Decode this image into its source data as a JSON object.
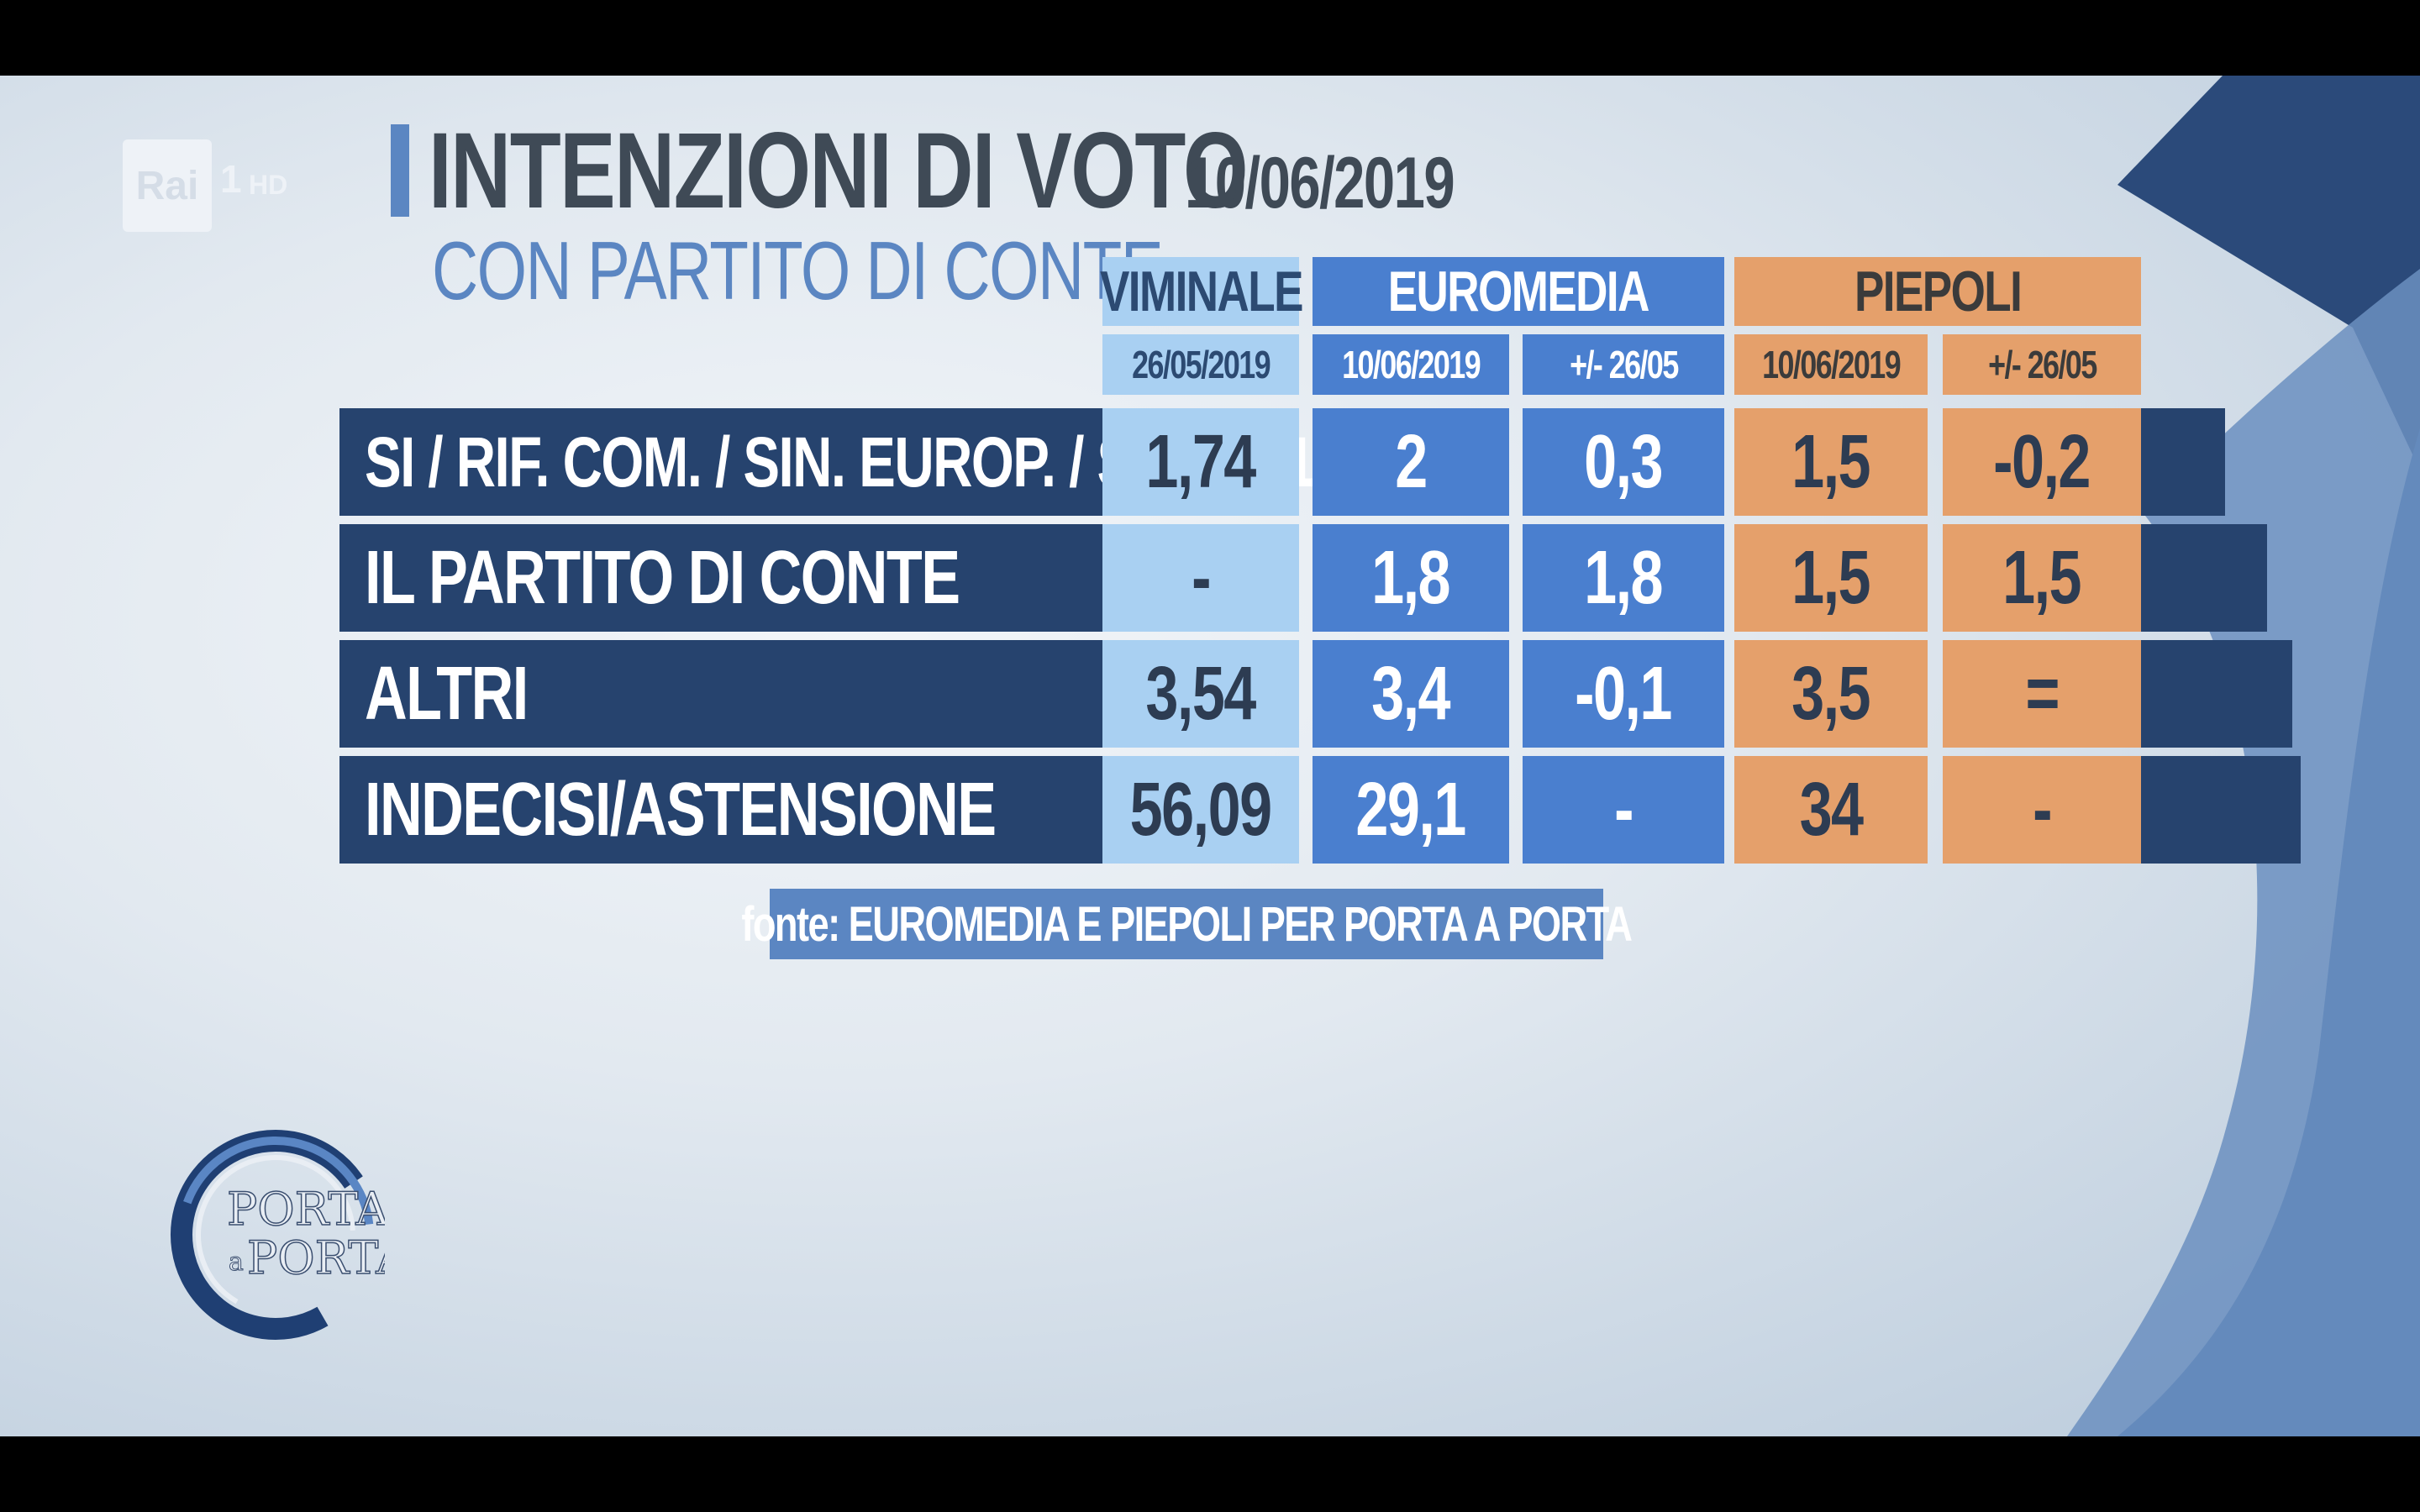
{
  "channel": {
    "logo_text": "Rai",
    "channel_num": "1",
    "hd": "HD"
  },
  "title": "INTENZIONI DI VOTO",
  "title_date": "10/06/2019",
  "subtitle": "CON PARTITO DI CONTE",
  "headers": {
    "viminale": "VIMINALE",
    "euromedia": "EUROMEDIA",
    "piepoli": "PIEPOLI",
    "viminale_date": "26/05/2019",
    "euromedia_date": "10/06/2019",
    "euromedia_diff": "+/- 26/05",
    "piepoli_date": "10/06/2019",
    "piepoli_diff": "+/- 26/05"
  },
  "rows": [
    {
      "label": "SI / RIF. COM. / SIN. EUROP. / SIN. ITAL.",
      "viminale": "1,74",
      "eur": "2",
      "eur_diff": "0,3",
      "pie": "1,5",
      "pie_diff": "-0,2"
    },
    {
      "label": "IL PARTITO DI CONTE",
      "viminale": "-",
      "eur": "1,8",
      "eur_diff": "1,8",
      "pie": "1,5",
      "pie_diff": "1,5"
    },
    {
      "label": "ALTRI",
      "viminale": "3,54",
      "eur": "3,4",
      "eur_diff": "-0,1",
      "pie": "3,5",
      "pie_diff": "="
    },
    {
      "label": "INDECISI/ASTENSIONE",
      "viminale": "56,09",
      "eur": "29,1",
      "eur_diff": "-",
      "pie": "34",
      "pie_diff": "-"
    }
  ],
  "source": "fonte: EUROMEDIA E PIEPOLI PER PORTA A PORTA",
  "show_logo": {
    "line1": "PORTA",
    "line2": "a",
    "line3": "PORTA"
  },
  "chart_data": {
    "type": "table",
    "title": "INTENZIONI DI VOTO",
    "subtitle": "CON PARTITO DI CONTE",
    "columns": [
      "VIMINALE 26/05/2019",
      "EUROMEDIA 10/06/2019",
      "EUROMEDIA +/- 26/05",
      "PIEPOLI 10/06/2019",
      "PIEPOLI +/- 26/05"
    ],
    "rows": [
      {
        "label": "SI / RIF. COM. / SIN. EUROP. / SIN. ITAL.",
        "values": [
          "1,74",
          "2",
          "0,3",
          "1,5",
          "-0,2"
        ]
      },
      {
        "label": "IL PARTITO DI CONTE",
        "values": [
          "-",
          "1,8",
          "1,8",
          "1,5",
          "1,5"
        ]
      },
      {
        "label": "ALTRI",
        "values": [
          "3,54",
          "3,4",
          "-0,1",
          "3,5",
          "="
        ]
      },
      {
        "label": "INDECISI/ASTENSIONE",
        "values": [
          "56,09",
          "29,1",
          "-",
          "34",
          "-"
        ]
      }
    ],
    "colors": {
      "viminale": "#a9d0f2",
      "euromedia": "#4a7fcf",
      "piepoli": "#e5a06b",
      "label_row": "#26436e"
    }
  }
}
